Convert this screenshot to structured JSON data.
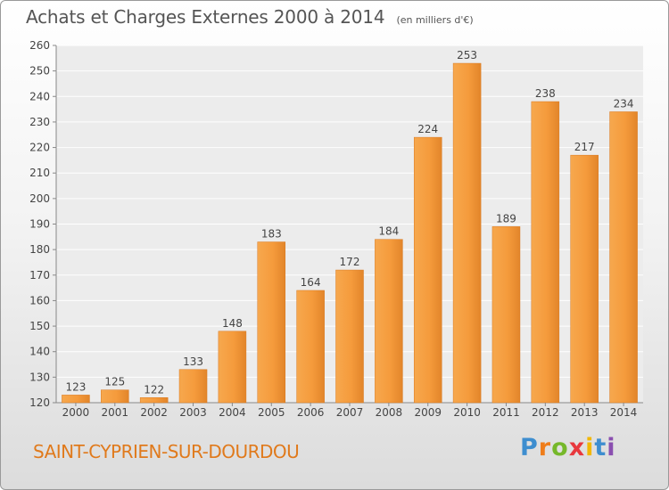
{
  "chart_data": {
    "type": "bar",
    "title": "Achats et Charges Externes 2000 à 2014",
    "subtitle": "(en milliers d'€)",
    "categories": [
      "2000",
      "2001",
      "2002",
      "2003",
      "2004",
      "2005",
      "2006",
      "2007",
      "2008",
      "2009",
      "2010",
      "2011",
      "2012",
      "2013",
      "2014"
    ],
    "values": [
      123,
      125,
      122,
      133,
      148,
      183,
      164,
      172,
      184,
      224,
      253,
      189,
      238,
      217,
      234
    ],
    "ylim": [
      120,
      260
    ],
    "yticks": [
      120,
      130,
      140,
      150,
      160,
      170,
      180,
      190,
      200,
      210,
      220,
      230,
      240,
      250,
      260
    ],
    "grid": true,
    "bar_color": "#f59b3c"
  },
  "footer": {
    "town": "SAINT-CYPRIEN-SUR-DOURDOU",
    "logo": "Proxiti"
  },
  "colors": {
    "logo_letters": [
      "#3e8ecf",
      "#ef7d1a",
      "#76b82a",
      "#e8383d",
      "#f2b705",
      "#3e8ecf",
      "#8a4fb0"
    ]
  }
}
